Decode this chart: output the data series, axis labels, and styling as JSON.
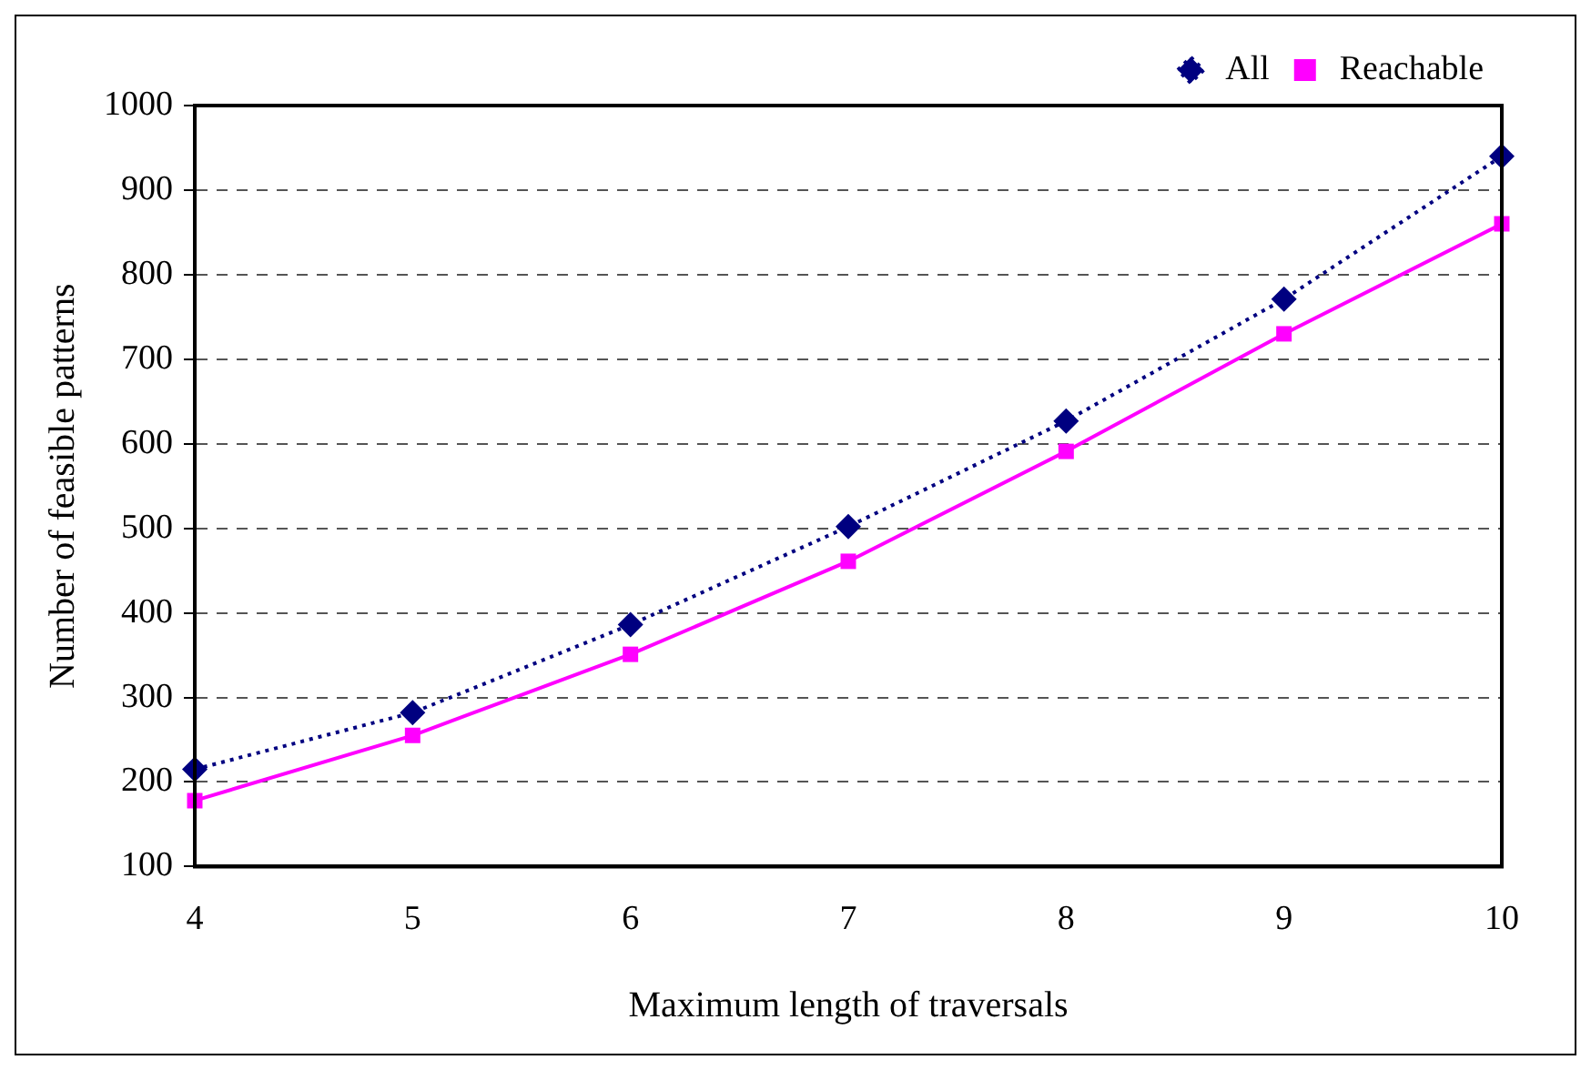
{
  "chart_data": {
    "type": "line",
    "xlabel": "Maximum length of traversals",
    "ylabel": "Number of feasible patterns",
    "categories": [
      "4",
      "5",
      "6",
      "7",
      "8",
      "9",
      "10"
    ],
    "series": [
      {
        "name": "All",
        "color": "#000080",
        "marker": "diamond",
        "line_style": "dotted",
        "values": [
          215,
          282,
          386,
          502,
          627,
          771,
          940
        ]
      },
      {
        "name": "Reachable",
        "color": "#ff00ff",
        "marker": "square",
        "line_style": "solid",
        "values": [
          178,
          255,
          351,
          461,
          591,
          730,
          860
        ]
      }
    ],
    "ylim": [
      100,
      1000
    ],
    "yticks": [
      100,
      200,
      300,
      400,
      500,
      600,
      700,
      800,
      900,
      1000
    ],
    "grid": "y",
    "legend": "top right"
  }
}
